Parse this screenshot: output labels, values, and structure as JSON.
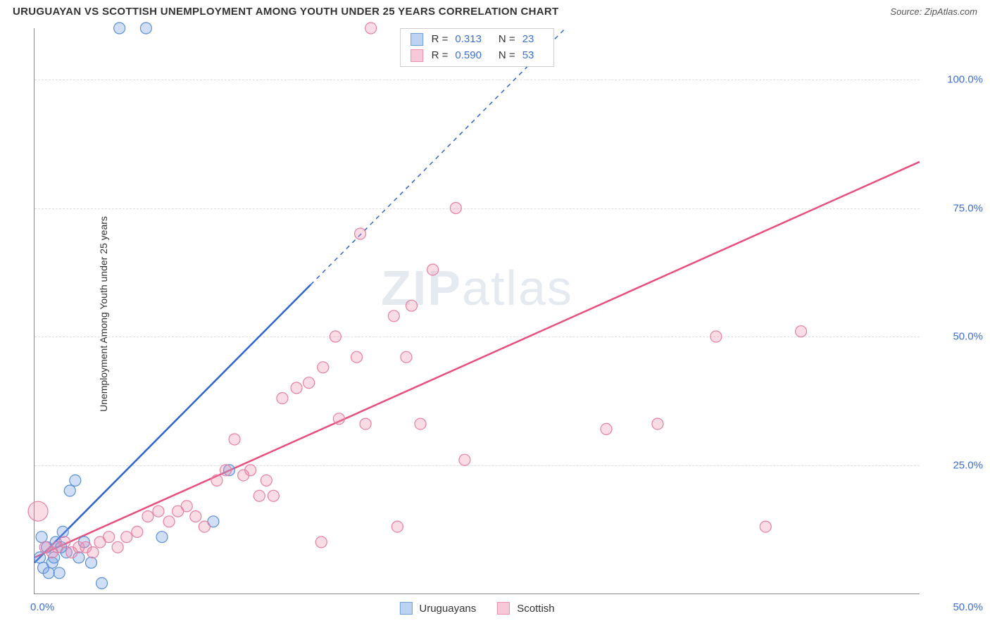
{
  "header": {
    "title": "URUGUAYAN VS SCOTTISH UNEMPLOYMENT AMONG YOUTH UNDER 25 YEARS CORRELATION CHART",
    "source_label": "Source:",
    "source_name": "ZipAtlas.com"
  },
  "chart": {
    "type": "scatter",
    "ylabel": "Unemployment Among Youth under 25 years",
    "xlim": [
      0,
      50
    ],
    "ylim": [
      0,
      110
    ],
    "y_ticks": [
      25,
      50,
      75,
      100
    ],
    "y_tick_labels": [
      "25.0%",
      "50.0%",
      "75.0%",
      "100.0%"
    ],
    "x_tick_left": "0.0%",
    "x_tick_right": "50.0%",
    "background_color": "#ffffff",
    "grid_color": "#dddddd",
    "axis_color": "#888888",
    "tick_label_color": "#3b6fd6",
    "watermark_text_bold": "ZIP",
    "watermark_text_rest": "atlas",
    "series": [
      {
        "name": "Uruguayans",
        "fill": "rgba(120,160,230,0.35)",
        "stroke": "#5a8fd8",
        "swatch_fill": "#bcd3f2",
        "swatch_border": "#6d9fe0",
        "marker_r": 8,
        "trend": {
          "color": "#2e63d0",
          "x1": 0,
          "y1": 6,
          "x2": 30,
          "y2": 110,
          "solid_until_x": 15.6
        },
        "stats": {
          "R_label": "R =",
          "R": "0.313",
          "N_label": "N =",
          "N": "23"
        },
        "points": [
          {
            "x": 0.3,
            "y": 7
          },
          {
            "x": 0.5,
            "y": 5
          },
          {
            "x": 0.7,
            "y": 9
          },
          {
            "x": 1.0,
            "y": 6
          },
          {
            "x": 1.2,
            "y": 10
          },
          {
            "x": 1.4,
            "y": 4
          },
          {
            "x": 1.6,
            "y": 12
          },
          {
            "x": 1.8,
            "y": 8
          },
          {
            "x": 2.0,
            "y": 20
          },
          {
            "x": 2.3,
            "y": 22
          },
          {
            "x": 2.8,
            "y": 10
          },
          {
            "x": 3.2,
            "y": 6
          },
          {
            "x": 3.8,
            "y": 2
          },
          {
            "x": 4.8,
            "y": 110
          },
          {
            "x": 6.3,
            "y": 110
          },
          {
            "x": 7.2,
            "y": 11
          },
          {
            "x": 10.1,
            "y": 14
          },
          {
            "x": 11.0,
            "y": 24
          },
          {
            "x": 0.8,
            "y": 4
          },
          {
            "x": 1.1,
            "y": 7
          },
          {
            "x": 1.5,
            "y": 9
          },
          {
            "x": 2.5,
            "y": 7
          },
          {
            "x": 0.4,
            "y": 11
          }
        ]
      },
      {
        "name": "Scottish",
        "fill": "rgba(240,140,170,0.30)",
        "stroke": "#e57fa4",
        "swatch_fill": "#f6c9d8",
        "swatch_border": "#ec8fb0",
        "marker_r": 8,
        "trend": {
          "color": "#e94f7d",
          "x1": 0,
          "y1": 7,
          "x2": 50,
          "y2": 84,
          "solid_until_x": 50
        },
        "stats": {
          "R_label": "R =",
          "R": "0.590",
          "N_label": "N =",
          "N": "53"
        },
        "points": [
          {
            "x": 0.2,
            "y": 16,
            "r": 14
          },
          {
            "x": 0.6,
            "y": 9
          },
          {
            "x": 1.0,
            "y": 8
          },
          {
            "x": 1.3,
            "y": 9
          },
          {
            "x": 1.7,
            "y": 10
          },
          {
            "x": 2.1,
            "y": 8
          },
          {
            "x": 2.5,
            "y": 9
          },
          {
            "x": 2.9,
            "y": 9
          },
          {
            "x": 3.3,
            "y": 8
          },
          {
            "x": 3.7,
            "y": 10
          },
          {
            "x": 4.2,
            "y": 11
          },
          {
            "x": 4.7,
            "y": 9
          },
          {
            "x": 5.2,
            "y": 11
          },
          {
            "x": 5.8,
            "y": 12
          },
          {
            "x": 6.4,
            "y": 15
          },
          {
            "x": 7.0,
            "y": 16
          },
          {
            "x": 7.6,
            "y": 14
          },
          {
            "x": 8.1,
            "y": 16
          },
          {
            "x": 8.6,
            "y": 17
          },
          {
            "x": 9.1,
            "y": 15
          },
          {
            "x": 9.6,
            "y": 13
          },
          {
            "x": 10.3,
            "y": 22
          },
          {
            "x": 10.8,
            "y": 24
          },
          {
            "x": 11.3,
            "y": 30
          },
          {
            "x": 11.8,
            "y": 23
          },
          {
            "x": 12.2,
            "y": 24
          },
          {
            "x": 12.7,
            "y": 19
          },
          {
            "x": 13.1,
            "y": 22
          },
          {
            "x": 13.5,
            "y": 19
          },
          {
            "x": 14.0,
            "y": 38
          },
          {
            "x": 14.8,
            "y": 40
          },
          {
            "x": 15.5,
            "y": 41
          },
          {
            "x": 16.2,
            "y": 10
          },
          {
            "x": 16.3,
            "y": 44
          },
          {
            "x": 17.0,
            "y": 50
          },
          {
            "x": 17.2,
            "y": 34
          },
          {
            "x": 18.2,
            "y": 46
          },
          {
            "x": 18.4,
            "y": 70
          },
          {
            "x": 18.7,
            "y": 33
          },
          {
            "x": 19.0,
            "y": 110
          },
          {
            "x": 20.3,
            "y": 54
          },
          {
            "x": 20.5,
            "y": 13
          },
          {
            "x": 21.0,
            "y": 46
          },
          {
            "x": 21.3,
            "y": 56
          },
          {
            "x": 21.8,
            "y": 33
          },
          {
            "x": 22.5,
            "y": 63
          },
          {
            "x": 23.8,
            "y": 75
          },
          {
            "x": 24.3,
            "y": 26
          },
          {
            "x": 32.3,
            "y": 32
          },
          {
            "x": 35.2,
            "y": 33
          },
          {
            "x": 38.5,
            "y": 50
          },
          {
            "x": 41.3,
            "y": 13
          },
          {
            "x": 43.3,
            "y": 51
          }
        ]
      }
    ]
  },
  "legend": {
    "item1": "Uruguayans",
    "item2": "Scottish"
  }
}
